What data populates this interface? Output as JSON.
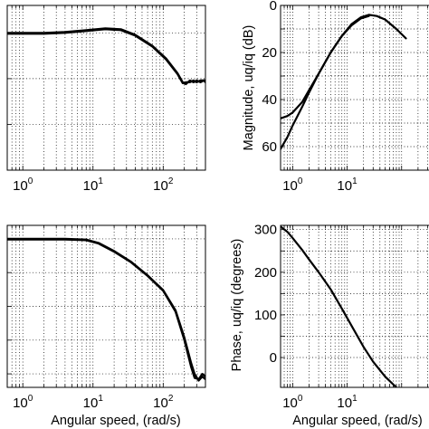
{
  "chart_data": [
    {
      "id": "tl",
      "type": "line",
      "xscale": "log",
      "xlim": [
        0.6,
        400
      ],
      "ylim": [
        -75,
        15
      ],
      "grid": true,
      "title": "",
      "xlabel": "",
      "ylabel": "",
      "x_tick_labels": [
        "10^0",
        "10^1",
        "10^2"
      ],
      "y_tick_labels": [],
      "series": [
        {
          "x": [
            0.6,
            1,
            2,
            4,
            8,
            15,
            25,
            40,
            70,
            110,
            160,
            190,
            210,
            240,
            270,
            300,
            340,
            380,
            400
          ],
          "y": [
            0,
            0,
            0,
            0.5,
            1.5,
            2.5,
            2,
            -1,
            -7,
            -14,
            -22,
            -27,
            -28,
            -26,
            -27,
            -26,
            -27,
            -26,
            -26
          ]
        },
        {
          "x": [
            0.6,
            1,
            2,
            4,
            8,
            15,
            25,
            40,
            70,
            110,
            160,
            190,
            210,
            240,
            270,
            300,
            340,
            380,
            400
          ],
          "y": [
            -0.5,
            -0.5,
            -0.5,
            0,
            1,
            2,
            1.5,
            -1.5,
            -7.5,
            -14.5,
            -22.5,
            -27.5,
            -27,
            -27,
            -26,
            -27,
            -26,
            -26,
            -27
          ]
        }
      ]
    },
    {
      "id": "tr",
      "type": "line",
      "xscale": "log",
      "xlim": [
        0.6,
        400
      ],
      "ylim": [
        -70,
        0
      ],
      "grid": true,
      "title": "",
      "xlabel": "",
      "ylabel": "Magnitude, uq/iq (dB)",
      "x_tick_labels": [
        "10^0",
        "10^1"
      ],
      "y_tick_labels": [
        "0",
        "20",
        "40",
        "60"
      ],
      "series": [
        {
          "x": [
            0.6,
            0.8,
            1,
            1.5,
            2,
            3,
            5,
            8,
            12,
            18,
            25,
            35,
            50,
            80,
            120
          ],
          "y": [
            -48,
            -47,
            -45.5,
            -41,
            -36,
            -29,
            -20,
            -13,
            -8,
            -5,
            -4,
            -4.5,
            -6,
            -10,
            -14
          ]
        },
        {
          "x": [
            0.6,
            0.8,
            1,
            1.5,
            2,
            3,
            5,
            8,
            12,
            18,
            25
          ],
          "y": [
            -61,
            -56,
            -51,
            -43,
            -37,
            -29,
            -20,
            -13,
            -8.5,
            -5.5,
            -4.5
          ]
        }
      ]
    },
    {
      "id": "bl",
      "type": "line",
      "xscale": "log",
      "xlim": [
        0.6,
        400
      ],
      "ylim": [
        -110,
        10
      ],
      "grid": true,
      "title": "",
      "xlabel": "Angular speed, (rad/s)",
      "ylabel": "",
      "x_tick_labels": [
        "10^0",
        "10^1",
        "10^2"
      ],
      "y_tick_labels": [],
      "series": [
        {
          "x": [
            0.6,
            1,
            2,
            4,
            8,
            12,
            20,
            35,
            60,
            100,
            150,
            200,
            250,
            280,
            320,
            360,
            400
          ],
          "y": [
            0,
            0,
            0,
            0,
            -0.5,
            -3,
            -9,
            -17,
            -27,
            -38,
            -53,
            -73,
            -92,
            -100,
            -105,
            -102,
            -104
          ]
        },
        {
          "x": [
            0.6,
            1,
            2,
            4,
            8,
            12,
            20,
            35,
            60,
            100,
            150,
            200,
            250,
            280,
            320,
            360,
            400
          ],
          "y": [
            -0.5,
            -0.5,
            -0.5,
            -0.5,
            -1,
            -3.5,
            -9.5,
            -17.5,
            -27.5,
            -38.5,
            -54,
            -75,
            -95,
            -103,
            -104,
            -100,
            -102
          ]
        }
      ]
    },
    {
      "id": "br",
      "type": "line",
      "xscale": "log",
      "xlim": [
        0.6,
        400
      ],
      "ylim": [
        -70,
        310
      ],
      "grid": true,
      "title": "",
      "xlabel": "Angular speed, (rad/s)",
      "ylabel": "Phase, uq/iq (degrees)",
      "x_tick_labels": [
        "10^0",
        "10^1"
      ],
      "y_tick_labels": [
        "300",
        "200",
        "100",
        "0"
      ],
      "series": [
        {
          "x": [
            0.6,
            0.8,
            1,
            1.5,
            2,
            3,
            5,
            8,
            12,
            20,
            30,
            50,
            80
          ],
          "y": [
            307,
            295,
            280,
            252,
            230,
            200,
            160,
            115,
            75,
            25,
            -10,
            -45,
            -70
          ]
        }
      ]
    }
  ]
}
